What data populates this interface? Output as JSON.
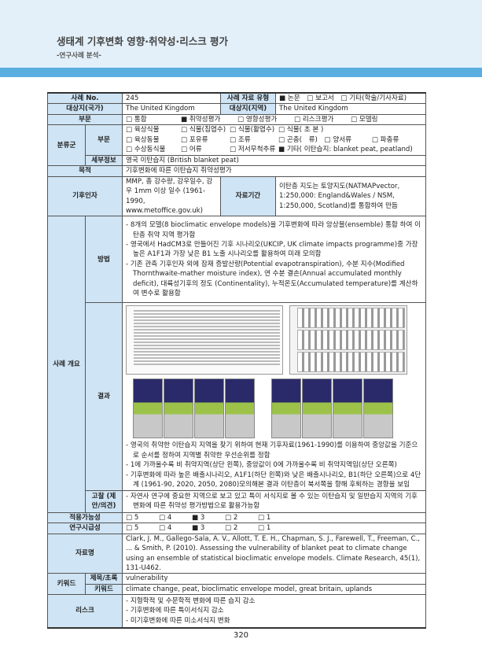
{
  "header": {
    "title": "생태계 기후변화 영향·취약성·리스크 평가",
    "subtitle": "-연구사례 분석-"
  },
  "case_no_label": "사례 No.",
  "case_no": "245",
  "type_label": "사례 자료 유형",
  "type_opts": "■ 논문　□ 보고서　□ 기타(학술/기사자료)",
  "country_label": "대상지(국가)",
  "country": "The United Kingdom",
  "region_label": "대상지(지역)",
  "region": "The United Kingdom",
  "sector_label": "부문",
  "sector_opts": [
    "□ 통합",
    "■ 취약성평가",
    "□ 영향성평가",
    "□ 리스크평가",
    "□ 모델링"
  ],
  "taxon_label": "분류군",
  "taxon_sector_label": "부문",
  "taxon_rows": [
    [
      "□ 육상식물",
      "□ 식물(침엽수)",
      "□ 식물(활엽수)",
      "□ 식물( 초 본 )"
    ],
    [
      "□ 육상동물",
      "□ 포유류",
      "□ 조류",
      "□ 곤충(　류)　□ 양서류　　　□ 파충류"
    ],
    [
      "□ 수상동식물",
      "□ 어류",
      "□ 저서무척추류",
      "■ 기타( 이탄습지: blanket peat, peatland)"
    ]
  ],
  "detail_label": "세부정보",
  "detail": "영국 이탄습지 (British blanket peat)",
  "purpose_label": "목적",
  "purpose": "기후변화에 따른 이탄습지 취약성평가",
  "climate_label": "기후인자",
  "climate": "MMP, 총 강수량, 강우일수, 강우 1mm 이상 일수 (1961-1990, www.metoffice.gov.uk)",
  "period_label": "자료기간",
  "period": "이탄층 지도는 토양지도(NATMAPvector, 1:250,000: England&Wales / NSM, 1:250,000, Scotland)를 통합하여 만듬",
  "overview_label": "사례 개요",
  "method_label": "방법",
  "method": [
    "- 8개의 모델(8 bioclimatic envelope models)을 기후변화에 따라 앙상블(ensemble) 통합 하여 이탄층 취약 지역 평가함",
    "- 영국에서 HadCM3로 만들어진 기후 시나리오(UKCIP, UK climate impacts programme)중 가장 높은 A1F1과 가장 낮은 B1 노출 시나리오를 활용하여 미래 모의함",
    "- 기존 관측 기후인자 외에 잠재 증발산량(Potential evapotranspiration), 수분 지수(Modified Thornthwaite-mather moisture index), 연 수분 결손(Annual accumulated monthly deficit), 대륙성기후의 정도 (Continentality), 누적온도(Accumulated temperature)를 계산하여 변수로 활용함"
  ],
  "result_label": "결과",
  "result": [
    "- 영국의 취약한 이탄습지 지역을 찾기 위하여 현재 기후자료(1961-1990)를 이용하여 중앙값을 기준으로 순서를 정하여 지역별 취약한 우선순위를 정함",
    "- 1에 가까울수록 비 취약지역(상단 왼쪽), 중앙값이 0에 가까울수록 비 취약지역임(상단 오른쪽)",
    "- 기후변화에 따라 높은 배출시나리오, A1F1(하단 왼쪽)와 낮은 배출시나리오, B1(하단 오른쪽)으로 4단계 (1961-90, 2020, 2050, 2080)모의해본 결과 이탄층이 북서쪽을 향해 후퇴하는 경향을 보임"
  ],
  "discussion_label": "고찰 (제안/의견)",
  "discussion": "- 자연사 연구에 중요한 지역으로 보고 있고 특이 서식지로 볼 수 있는 이탄습지 및 일반습지 지역의 기후변화에 따른 취약성 평가방법으로 활용가능함",
  "applicability_label": "적용가능성",
  "applicability": [
    "□ 5",
    "□ 4",
    "■ 3",
    "□ 2",
    "□ 1"
  ],
  "urgency_label": "연구시급성",
  "urgency": [
    "□ 5",
    "□ 4",
    "■ 3",
    "□ 2",
    "□ 1"
  ],
  "source_label": "자료명",
  "source": "Clark, J. M., Gallego-Sala, A. V., Allott, T. E. H., Chapman, S. J., Farewell, T., Freeman, C., ... & Smith, P. (2010). Assessing the vulnerability of blanket peat to climate change using an ensemble of statistical bioclimatic envelope models. Climate Research, 45(1), 131-U462.",
  "keyword_label": "키워드",
  "title_abs_label": "제목/초록",
  "title_abs": "vulnerability",
  "kw_label": "키워드",
  "kw": "climate change, peat, bioclimatic envelope model, great britain, uplands",
  "risk_label": "리스크",
  "risk": [
    "- 지형학적 및 수문학적 변화에 따른 습지 감소",
    "- 기후변화에 따른 특이서식지 감소",
    "- 미기후변화에 따른 미소서식지 변화"
  ],
  "page": "320"
}
